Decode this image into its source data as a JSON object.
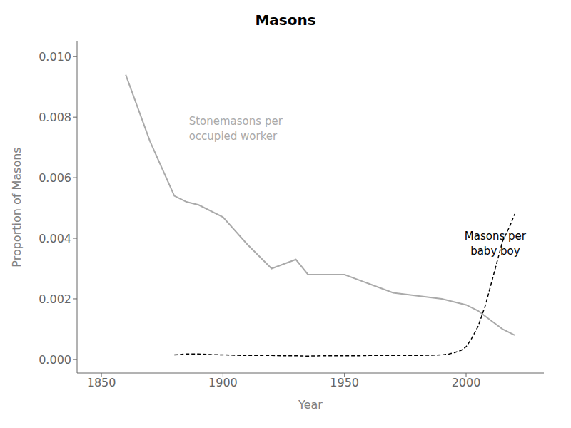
{
  "chart_data": {
    "type": "line",
    "title": "Masons",
    "xlabel": "Year",
    "ylabel": "Proportion of Masons",
    "xlim": [
      1840,
      2032
    ],
    "xticks": [
      1850,
      1900,
      1950,
      2000
    ],
    "ylim": [
      -0.00045,
      0.0105
    ],
    "yticks": [
      {
        "value": 0.0,
        "label": "0.000"
      },
      0.002,
      0.004,
      0.006,
      0.008,
      {
        "value": 0.01,
        "label": "0.010"
      }
    ],
    "grid": false,
    "series": [
      {
        "color": "#aaaaaa",
        "line_style": "solid",
        "x": [
          1860,
          1870,
          1880,
          1885,
          1890,
          1900,
          1910,
          1920,
          1930,
          1935,
          1940,
          1950,
          1960,
          1970,
          1980,
          1990,
          2000,
          2005,
          2010,
          2015,
          2020
        ],
        "values": [
          0.0094,
          0.0072,
          0.0054,
          0.0052,
          0.0051,
          0.0047,
          0.0038,
          0.003,
          0.0033,
          0.0028,
          0.0028,
          0.0028,
          0.0025,
          0.0022,
          0.0021,
          0.002,
          0.0018,
          0.0016,
          0.0013,
          0.001,
          0.0008
        ]
      },
      {
        "color": "#000000",
        "line_style": "dashed",
        "x": [
          1880,
          1885,
          1890,
          1895,
          1900,
          1905,
          1910,
          1915,
          1920,
          1925,
          1930,
          1935,
          1940,
          1945,
          1950,
          1955,
          1960,
          1965,
          1970,
          1975,
          1980,
          1985,
          1990,
          1993,
          1995,
          1998,
          2000,
          2002,
          2005,
          2008,
          2010,
          2013,
          2015,
          2018,
          2020
        ],
        "values": [
          0.00015,
          0.00018,
          0.00018,
          0.00016,
          0.00015,
          0.00014,
          0.00013,
          0.00013,
          0.00013,
          0.00012,
          0.00012,
          0.00011,
          0.00012,
          0.00012,
          0.00012,
          0.00012,
          0.00013,
          0.00013,
          0.00013,
          0.00013,
          0.00013,
          0.00014,
          0.00015,
          0.00018,
          0.00022,
          0.0003,
          0.00042,
          0.00065,
          0.0011,
          0.0018,
          0.0024,
          0.0033,
          0.0039,
          0.0044,
          0.0048
        ]
      }
    ],
    "annotations": [
      {
        "text": "Stonemasons per\noccupied worker",
        "x": 1886,
        "y": 0.0081,
        "color": "#aaaaaa"
      },
      {
        "text": "Masons per\nbaby boy",
        "x": 2012,
        "y": 0.0043,
        "color": "#000000"
      }
    ]
  }
}
